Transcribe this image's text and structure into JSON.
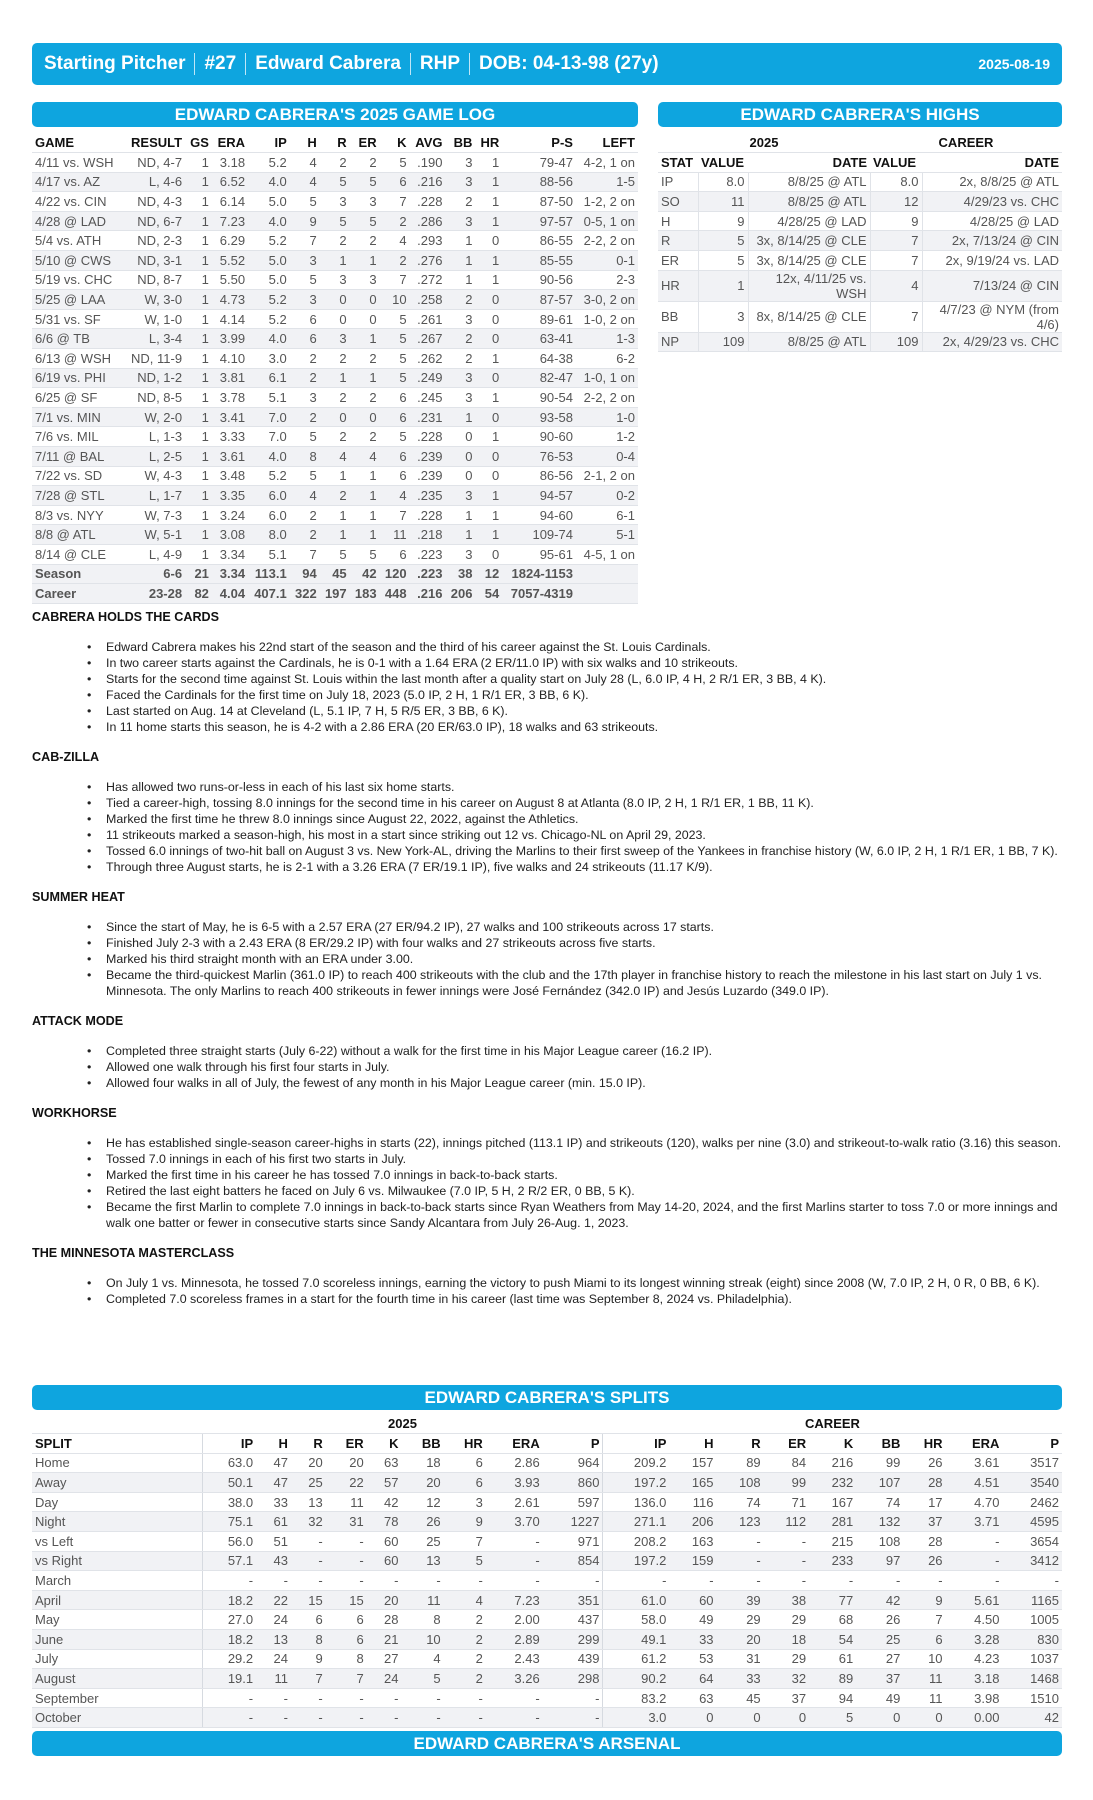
{
  "header": {
    "role": "Starting Pitcher",
    "number": "#27",
    "name": "Edward Cabrera",
    "throws": "RHP",
    "dob": "DOB: 04-13-98 (27y)",
    "date": "2025-08-19"
  },
  "colors": {
    "accent": "#0ea5df"
  },
  "gamelog": {
    "title": "EDWARD CABRERA'S 2025 GAME LOG",
    "columns": [
      "GAME",
      "RESULT",
      "GS",
      "ERA",
      "IP",
      "H",
      "R",
      "ER",
      "K",
      "AVG",
      "BB",
      "HR",
      "P-S",
      "LEFT"
    ],
    "rows": [
      [
        "4/11 vs. WSH",
        "ND, 4-7",
        "1",
        "3.18",
        "5.2",
        "4",
        "2",
        "2",
        "5",
        ".190",
        "3",
        "1",
        "79-47",
        "4-2, 1 on"
      ],
      [
        "4/17 vs. AZ",
        "L, 4-6",
        "1",
        "6.52",
        "4.0",
        "4",
        "5",
        "5",
        "6",
        ".216",
        "3",
        "1",
        "88-56",
        "1-5"
      ],
      [
        "4/22 vs. CIN",
        "ND, 4-3",
        "1",
        "6.14",
        "5.0",
        "5",
        "3",
        "3",
        "7",
        ".228",
        "2",
        "1",
        "87-50",
        "1-2, 2 on"
      ],
      [
        "4/28 @ LAD",
        "ND, 6-7",
        "1",
        "7.23",
        "4.0",
        "9",
        "5",
        "5",
        "2",
        ".286",
        "3",
        "1",
        "97-57",
        "0-5, 1 on"
      ],
      [
        "5/4 vs. ATH",
        "ND, 2-3",
        "1",
        "6.29",
        "5.2",
        "7",
        "2",
        "2",
        "4",
        ".293",
        "1",
        "0",
        "86-55",
        "2-2, 2 on"
      ],
      [
        "5/10 @ CWS",
        "ND, 3-1",
        "1",
        "5.52",
        "5.0",
        "3",
        "1",
        "1",
        "2",
        ".276",
        "1",
        "1",
        "85-55",
        "0-1"
      ],
      [
        "5/19 vs. CHC",
        "ND, 8-7",
        "1",
        "5.50",
        "5.0",
        "5",
        "3",
        "3",
        "7",
        ".272",
        "1",
        "1",
        "90-56",
        "2-3"
      ],
      [
        "5/25 @ LAA",
        "W, 3-0",
        "1",
        "4.73",
        "5.2",
        "3",
        "0",
        "0",
        "10",
        ".258",
        "2",
        "0",
        "87-57",
        "3-0, 2 on"
      ],
      [
        "5/31 vs. SF",
        "W, 1-0",
        "1",
        "4.14",
        "5.2",
        "6",
        "0",
        "0",
        "5",
        ".261",
        "3",
        "0",
        "89-61",
        "1-0, 2 on"
      ],
      [
        "6/6 @ TB",
        "L, 3-4",
        "1",
        "3.99",
        "4.0",
        "6",
        "3",
        "1",
        "5",
        ".267",
        "2",
        "0",
        "63-41",
        "1-3"
      ],
      [
        "6/13 @ WSH",
        "ND, 11-9",
        "1",
        "4.10",
        "3.0",
        "2",
        "2",
        "2",
        "5",
        ".262",
        "2",
        "1",
        "64-38",
        "6-2"
      ],
      [
        "6/19 vs. PHI",
        "ND, 1-2",
        "1",
        "3.81",
        "6.1",
        "2",
        "1",
        "1",
        "5",
        ".249",
        "3",
        "0",
        "82-47",
        "1-0, 1 on"
      ],
      [
        "6/25 @ SF",
        "ND, 8-5",
        "1",
        "3.78",
        "5.1",
        "3",
        "2",
        "2",
        "6",
        ".245",
        "3",
        "1",
        "90-54",
        "2-2, 2 on"
      ],
      [
        "7/1 vs. MIN",
        "W, 2-0",
        "1",
        "3.41",
        "7.0",
        "2",
        "0",
        "0",
        "6",
        ".231",
        "1",
        "0",
        "93-58",
        "1-0"
      ],
      [
        "7/6 vs. MIL",
        "L, 1-3",
        "1",
        "3.33",
        "7.0",
        "5",
        "2",
        "2",
        "5",
        ".228",
        "0",
        "1",
        "90-60",
        "1-2"
      ],
      [
        "7/11 @ BAL",
        "L, 2-5",
        "1",
        "3.61",
        "4.0",
        "8",
        "4",
        "4",
        "6",
        ".239",
        "0",
        "0",
        "76-53",
        "0-4"
      ],
      [
        "7/22 vs. SD",
        "W, 4-3",
        "1",
        "3.48",
        "5.2",
        "5",
        "1",
        "1",
        "6",
        ".239",
        "0",
        "0",
        "86-56",
        "2-1, 2 on"
      ],
      [
        "7/28 @ STL",
        "L, 1-7",
        "1",
        "3.35",
        "6.0",
        "4",
        "2",
        "1",
        "4",
        ".235",
        "3",
        "1",
        "94-57",
        "0-2"
      ],
      [
        "8/3 vs. NYY",
        "W, 7-3",
        "1",
        "3.24",
        "6.0",
        "2",
        "1",
        "1",
        "7",
        ".228",
        "1",
        "1",
        "94-60",
        "6-1"
      ],
      [
        "8/8 @ ATL",
        "W, 5-1",
        "1",
        "3.08",
        "8.0",
        "2",
        "1",
        "1",
        "11",
        ".218",
        "1",
        "1",
        "109-74",
        "5-1"
      ],
      [
        "8/14 @ CLE",
        "L, 4-9",
        "1",
        "3.34",
        "5.1",
        "7",
        "5",
        "5",
        "6",
        ".223",
        "3",
        "0",
        "95-61",
        "4-5, 1 on"
      ]
    ],
    "totals": [
      [
        "Season",
        "6-6",
        "21",
        "3.34",
        "113.1",
        "94",
        "45",
        "42",
        "120",
        ".223",
        "38",
        "12",
        "1824-1153",
        ""
      ],
      [
        "Career",
        "23-28",
        "82",
        "4.04",
        "407.1",
        "322",
        "197",
        "183",
        "448",
        ".216",
        "206",
        "54",
        "7057-4319",
        ""
      ]
    ]
  },
  "highs": {
    "title": "EDWARD CABRERA'S HIGHS",
    "group_2025": "2025",
    "group_career": "CAREER",
    "columns": [
      "STAT",
      "VALUE",
      "DATE",
      "VALUE",
      "DATE"
    ],
    "rows": [
      [
        "IP",
        "8.0",
        "8/8/25 @ ATL",
        "8.0",
        "2x, 8/8/25 @ ATL"
      ],
      [
        "SO",
        "11",
        "8/8/25 @ ATL",
        "12",
        "4/29/23 vs. CHC"
      ],
      [
        "H",
        "9",
        "4/28/25 @ LAD",
        "9",
        "4/28/25 @ LAD"
      ],
      [
        "R",
        "5",
        "3x, 8/14/25 @ CLE",
        "7",
        "2x, 7/13/24 @ CIN"
      ],
      [
        "ER",
        "5",
        "3x, 8/14/25 @ CLE",
        "7",
        "2x, 9/19/24 vs. LAD"
      ],
      [
        "HR",
        "1",
        "12x, 4/11/25 vs. WSH",
        "4",
        "7/13/24 @ CIN"
      ],
      [
        "BB",
        "3",
        "8x, 8/14/25 @ CLE",
        "7",
        "4/7/23 @ NYM (from 4/6)"
      ],
      [
        "NP",
        "109",
        "8/8/25 @ ATL",
        "109",
        "2x, 4/29/23 vs. CHC"
      ]
    ]
  },
  "notes": [
    {
      "heading": "CABRERA HOLDS THE CARDS",
      "bullets": [
        "Edward Cabrera makes his 22nd start of the season and the third of his career against the St. Louis Cardinals.",
        "In two career starts against the Cardinals, he is 0-1 with a 1.64 ERA (2 ER/11.0 IP) with six walks and 10 strikeouts.",
        "Starts for the second time against St. Louis within the last month after a quality start on July 28 (L, 6.0 IP, 4 H, 2 R/1 ER, 3 BB, 4 K).",
        "Faced the Cardinals for the first time on July 18, 2023 (5.0 IP, 2 H, 1 R/1 ER, 3 BB, 6 K).",
        "Last started on Aug. 14 at Cleveland (L, 5.1 IP, 7 H, 5 R/5 ER, 3 BB, 6 K).",
        "In 11 home starts this season, he is 4-2 with a 2.86 ERA (20 ER/63.0 IP), 18 walks and 63 strikeouts."
      ]
    },
    {
      "heading": "CAB-ZILLA",
      "bullets": [
        "Has allowed two runs-or-less in each of his last six home starts.",
        "Tied a career-high, tossing 8.0 innings for the second time in his career on August 8 at Atlanta (8.0 IP, 2 H, 1 R/1 ER, 1 BB, 11 K).",
        "Marked the first time he threw 8.0 innings since August 22, 2022, against the Athletics.",
        "11 strikeouts marked a season-high, his most in a start since striking out 12 vs. Chicago-NL on April 29, 2023.",
        "Tossed 6.0 innings of two-hit ball on August 3 vs. New York-AL, driving the Marlins to their first sweep of the Yankees in franchise history (W, 6.0 IP, 2 H, 1 R/1 ER, 1 BB, 7 K).",
        "Through three August starts, he is 2-1 with a 3.26 ERA (7 ER/19.1 IP), five walks and 24 strikeouts (11.17 K/9)."
      ]
    },
    {
      "heading": "SUMMER HEAT",
      "bullets": [
        "Since the start of May, he is 6-5 with a 2.57 ERA (27 ER/94.2 IP), 27 walks and 100 strikeouts across 17 starts.",
        "Finished July 2-3 with a 2.43 ERA (8 ER/29.2 IP) with four walks and 27 strikeouts across five starts.",
        "Marked his third straight month with an ERA under 3.00.",
        "Became the third-quickest Marlin (361.0 IP) to reach 400 strikeouts with the club and the 17th player in franchise history to reach the milestone in his last start on July 1 vs. Minnesota. The only Marlins to reach 400 strikeouts in fewer innings were José Fernández (342.0 IP) and Jesús Luzardo (349.0 IP)."
      ]
    },
    {
      "heading": "ATTACK MODE",
      "bullets": [
        "Completed three straight starts (July 6-22) without a walk for the first time in his Major League career (16.2 IP).",
        "Allowed one walk through his first four starts in July.",
        "Allowed four walks in all of July, the fewest of any month in his Major League career (min. 15.0 IP)."
      ]
    },
    {
      "heading": "WORKHORSE",
      "bullets": [
        "He has established single-season career-highs in starts (22), innings pitched (113.1 IP) and strikeouts (120), walks per nine (3.0) and strikeout-to-walk ratio (3.16) this season.",
        "Tossed 7.0 innings in each of his first two starts in July.",
        "Marked the first time in his career he has tossed 7.0 innings in back-to-back starts.",
        "Retired the last eight batters he faced on July 6 vs. Milwaukee (7.0 IP, 5 H, 2 R/2 ER, 0 BB, 5 K).",
        "Became the first Marlin to complete 7.0 innings in back-to-back starts since Ryan Weathers from May 14-20, 2024, and the first Marlins starter to toss 7.0 or more innings and walk one batter or fewer in consecutive starts since Sandy Alcantara from July 26-Aug. 1, 2023."
      ]
    },
    {
      "heading": "THE MINNESOTA MASTERCLASS",
      "bullets": [
        "On July 1 vs. Minnesota, he tossed 7.0 scoreless innings, earning the victory to push Miami to its longest winning streak (eight) since 2008 (W, 7.0 IP, 2 H, 0 R, 0 BB, 6 K).",
        "Completed 7.0 scoreless frames in a start for the fourth time in his career (last time was September 8, 2024 vs. Philadelphia)."
      ]
    }
  ],
  "splits": {
    "title": "EDWARD CABRERA'S SPLITS",
    "group_2025": "2025",
    "group_career": "CAREER",
    "columns": [
      "SPLIT",
      "IP",
      "H",
      "R",
      "ER",
      "K",
      "BB",
      "HR",
      "ERA",
      "P",
      "IP",
      "H",
      "R",
      "ER",
      "K",
      "BB",
      "HR",
      "ERA",
      "P"
    ],
    "rows": [
      [
        "Home",
        "63.0",
        "47",
        "20",
        "20",
        "63",
        "18",
        "6",
        "2.86",
        "964",
        "209.2",
        "157",
        "89",
        "84",
        "216",
        "99",
        "26",
        "3.61",
        "3517"
      ],
      [
        "Away",
        "50.1",
        "47",
        "25",
        "22",
        "57",
        "20",
        "6",
        "3.93",
        "860",
        "197.2",
        "165",
        "108",
        "99",
        "232",
        "107",
        "28",
        "4.51",
        "3540"
      ],
      [
        "Day",
        "38.0",
        "33",
        "13",
        "11",
        "42",
        "12",
        "3",
        "2.61",
        "597",
        "136.0",
        "116",
        "74",
        "71",
        "167",
        "74",
        "17",
        "4.70",
        "2462"
      ],
      [
        "Night",
        "75.1",
        "61",
        "32",
        "31",
        "78",
        "26",
        "9",
        "3.70",
        "1227",
        "271.1",
        "206",
        "123",
        "112",
        "281",
        "132",
        "37",
        "3.71",
        "4595"
      ],
      [
        "vs Left",
        "56.0",
        "51",
        "-",
        "-",
        "60",
        "25",
        "7",
        "-",
        "971",
        "208.2",
        "163",
        "-",
        "-",
        "215",
        "108",
        "28",
        "-",
        "3654"
      ],
      [
        "vs Right",
        "57.1",
        "43",
        "-",
        "-",
        "60",
        "13",
        "5",
        "-",
        "854",
        "197.2",
        "159",
        "-",
        "-",
        "233",
        "97",
        "26",
        "-",
        "3412"
      ],
      [
        "March",
        "-",
        "-",
        "-",
        "-",
        "-",
        "-",
        "-",
        "-",
        "-",
        "-",
        "-",
        "-",
        "-",
        "-",
        "-",
        "-",
        "-",
        "-"
      ],
      [
        "April",
        "18.2",
        "22",
        "15",
        "15",
        "20",
        "11",
        "4",
        "7.23",
        "351",
        "61.0",
        "60",
        "39",
        "38",
        "77",
        "42",
        "9",
        "5.61",
        "1165"
      ],
      [
        "May",
        "27.0",
        "24",
        "6",
        "6",
        "28",
        "8",
        "2",
        "2.00",
        "437",
        "58.0",
        "49",
        "29",
        "29",
        "68",
        "26",
        "7",
        "4.50",
        "1005"
      ],
      [
        "June",
        "18.2",
        "13",
        "8",
        "6",
        "21",
        "10",
        "2",
        "2.89",
        "299",
        "49.1",
        "33",
        "20",
        "18",
        "54",
        "25",
        "6",
        "3.28",
        "830"
      ],
      [
        "July",
        "29.2",
        "24",
        "9",
        "8",
        "27",
        "4",
        "2",
        "2.43",
        "439",
        "61.2",
        "53",
        "31",
        "29",
        "61",
        "27",
        "10",
        "4.23",
        "1037"
      ],
      [
        "August",
        "19.1",
        "11",
        "7",
        "7",
        "24",
        "5",
        "2",
        "3.26",
        "298",
        "90.2",
        "64",
        "33",
        "32",
        "89",
        "37",
        "11",
        "3.18",
        "1468"
      ],
      [
        "September",
        "-",
        "-",
        "-",
        "-",
        "-",
        "-",
        "-",
        "-",
        "-",
        "83.2",
        "63",
        "45",
        "37",
        "94",
        "49",
        "11",
        "3.98",
        "1510"
      ],
      [
        "October",
        "-",
        "-",
        "-",
        "-",
        "-",
        "-",
        "-",
        "-",
        "-",
        "3.0",
        "0",
        "0",
        "0",
        "5",
        "0",
        "0",
        "0.00",
        "42"
      ]
    ]
  },
  "arsenal": {
    "title": "EDWARD CABRERA'S ARSENAL"
  }
}
